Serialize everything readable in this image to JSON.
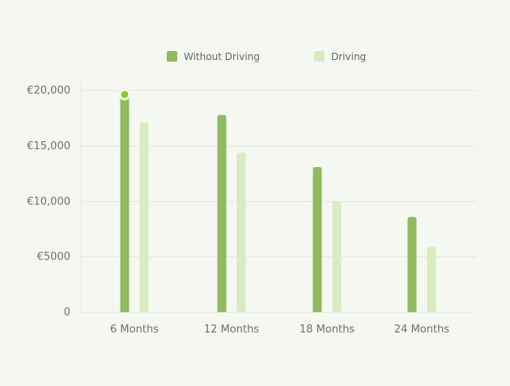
{
  "chart_data": {
    "type": "bar",
    "categories": [
      "6 Months",
      "12 Months",
      "18 Months",
      "24 Months"
    ],
    "series": [
      {
        "name": "Without Driving",
        "color": "#8fba5e",
        "values": [
          19500,
          17800,
          13100,
          8600
        ]
      },
      {
        "name": "Driving",
        "color": "#d9ebc1",
        "values": [
          17100,
          14400,
          10000,
          5900
        ]
      }
    ],
    "ylim": [
      0,
      21000
    ],
    "ytick_values": [
      0,
      5000,
      10000,
      15000,
      20000
    ],
    "ytick_labels": [
      "0",
      "€5000",
      "€10,000",
      "€15,000",
      "€20,000"
    ],
    "legend_position": "top-center",
    "grid": true,
    "highlight": {
      "series": "Without Driving",
      "category": "6 Months",
      "marker_color": "#7ed321"
    }
  }
}
